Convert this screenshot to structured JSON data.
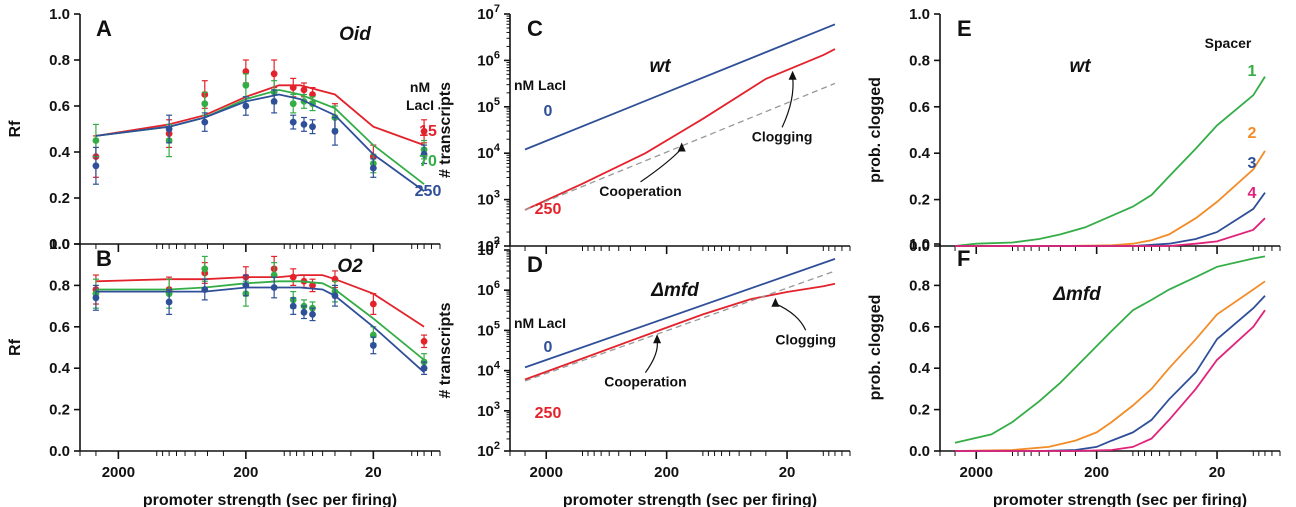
{
  "colors": {
    "red": "#e3222b",
    "green": "#34ad47",
    "blue": "#2f4f98",
    "orange": "#f28c28",
    "magenta": "#e0237a",
    "dashed": "#999999",
    "axis": "#111111"
  },
  "x_axis": {
    "label": "promoter strength (sec per firing)",
    "ticks": [
      2000,
      200,
      20
    ],
    "range": [
      4000,
      6
    ]
  },
  "chart_data": [
    {
      "id": "A",
      "panel_label": "A",
      "type": "line",
      "title": "Oid",
      "ylabel": "Rf",
      "ylim": [
        0,
        1
      ],
      "yticks": [
        "0.0",
        "0.2",
        "0.4",
        "0.6",
        "0.8",
        "1.0"
      ],
      "xscale": "log",
      "legend_title": [
        "nM",
        "LacI"
      ],
      "series": [
        {
          "name": "15",
          "color": "red",
          "x": [
            3000,
            800,
            420,
            200,
            110,
            75,
            40,
            20,
            8
          ],
          "y": [
            0.47,
            0.52,
            0.56,
            0.64,
            0.69,
            0.69,
            0.65,
            0.51,
            0.43
          ],
          "points": [
            [
              3000,
              0.38,
              0.09
            ],
            [
              800,
              0.48,
              0.06
            ],
            [
              420,
              0.65,
              0.06
            ],
            [
              200,
              0.75,
              0.05
            ],
            [
              120,
              0.74,
              0.06
            ],
            [
              85,
              0.68,
              0.04
            ],
            [
              70,
              0.67,
              0.03
            ],
            [
              60,
              0.65,
              0.03
            ],
            [
              40,
              0.55,
              0.06
            ],
            [
              20,
              0.38,
              0.05
            ],
            [
              8,
              0.49,
              0.05
            ]
          ]
        },
        {
          "name": "70",
          "color": "green",
          "x": [
            3000,
            800,
            420,
            200,
            110,
            75,
            40,
            20,
            8
          ],
          "y": [
            0.47,
            0.51,
            0.55,
            0.63,
            0.67,
            0.65,
            0.59,
            0.43,
            0.26
          ],
          "points": [
            [
              3000,
              0.45,
              0.07
            ],
            [
              800,
              0.45,
              0.07
            ],
            [
              420,
              0.61,
              0.05
            ],
            [
              200,
              0.69,
              0.05
            ],
            [
              120,
              0.66,
              0.05
            ],
            [
              85,
              0.61,
              0.04
            ],
            [
              70,
              0.62,
              0.03
            ],
            [
              60,
              0.61,
              0.03
            ],
            [
              40,
              0.55,
              0.05
            ],
            [
              20,
              0.35,
              0.04
            ],
            [
              8,
              0.41,
              0.04
            ]
          ]
        },
        {
          "name": "250",
          "color": "blue",
          "x": [
            3000,
            800,
            420,
            200,
            110,
            75,
            40,
            20,
            8
          ],
          "y": [
            0.47,
            0.51,
            0.55,
            0.62,
            0.65,
            0.63,
            0.56,
            0.39,
            0.23
          ],
          "points": [
            [
              3000,
              0.34,
              0.08
            ],
            [
              800,
              0.5,
              0.06
            ],
            [
              420,
              0.53,
              0.04
            ],
            [
              200,
              0.6,
              0.04
            ],
            [
              120,
              0.62,
              0.05
            ],
            [
              85,
              0.53,
              0.03
            ],
            [
              70,
              0.52,
              0.03
            ],
            [
              60,
              0.51,
              0.03
            ],
            [
              40,
              0.49,
              0.06
            ],
            [
              20,
              0.33,
              0.04
            ],
            [
              8,
              0.39,
              0.04
            ]
          ]
        }
      ]
    },
    {
      "id": "B",
      "panel_label": "B",
      "type": "line",
      "title": "O2",
      "ylabel": "Rf",
      "ylim": [
        0,
        1
      ],
      "yticks": [
        "0.0",
        "0.2",
        "0.4",
        "0.6",
        "0.8",
        "1.0"
      ],
      "xscale": "log",
      "series": [
        {
          "name": "15",
          "color": "red",
          "x": [
            3000,
            800,
            420,
            200,
            110,
            75,
            50,
            40,
            20,
            8
          ],
          "y": [
            0.82,
            0.83,
            0.83,
            0.84,
            0.84,
            0.85,
            0.85,
            0.83,
            0.76,
            0.6
          ],
          "points": [
            [
              3000,
              0.78,
              0.07
            ],
            [
              800,
              0.78,
              0.06
            ],
            [
              420,
              0.86,
              0.05
            ],
            [
              200,
              0.84,
              0.05
            ],
            [
              120,
              0.88,
              0.06
            ],
            [
              85,
              0.84,
              0.04
            ],
            [
              70,
              0.82,
              0.03
            ],
            [
              60,
              0.8,
              0.03
            ],
            [
              40,
              0.83,
              0.04
            ],
            [
              20,
              0.71,
              0.05
            ],
            [
              8,
              0.53,
              0.03
            ]
          ]
        },
        {
          "name": "70",
          "color": "green",
          "x": [
            3000,
            800,
            420,
            200,
            110,
            75,
            50,
            40,
            20,
            8
          ],
          "y": [
            0.78,
            0.78,
            0.79,
            0.81,
            0.82,
            0.82,
            0.81,
            0.78,
            0.64,
            0.44
          ],
          "points": [
            [
              3000,
              0.76,
              0.07
            ],
            [
              800,
              0.76,
              0.07
            ],
            [
              420,
              0.88,
              0.06
            ],
            [
              200,
              0.76,
              0.06
            ],
            [
              120,
              0.85,
              0.06
            ],
            [
              85,
              0.73,
              0.04
            ],
            [
              70,
              0.7,
              0.03
            ],
            [
              60,
              0.69,
              0.03
            ],
            [
              40,
              0.77,
              0.05
            ],
            [
              20,
              0.56,
              0.04
            ],
            [
              8,
              0.43,
              0.04
            ]
          ]
        },
        {
          "name": "250",
          "color": "blue",
          "x": [
            3000,
            800,
            420,
            200,
            110,
            75,
            50,
            40,
            20,
            8
          ],
          "y": [
            0.77,
            0.77,
            0.77,
            0.79,
            0.79,
            0.79,
            0.78,
            0.75,
            0.6,
            0.38
          ],
          "points": [
            [
              3000,
              0.74,
              0.06
            ],
            [
              800,
              0.72,
              0.06
            ],
            [
              420,
              0.78,
              0.05
            ],
            [
              200,
              0.8,
              0.05
            ],
            [
              120,
              0.79,
              0.05
            ],
            [
              85,
              0.7,
              0.04
            ],
            [
              70,
              0.67,
              0.03
            ],
            [
              60,
              0.66,
              0.03
            ],
            [
              40,
              0.75,
              0.05
            ],
            [
              20,
              0.51,
              0.04
            ],
            [
              8,
              0.4,
              0.03
            ]
          ]
        }
      ]
    },
    {
      "id": "C",
      "panel_label": "C",
      "type": "line",
      "title": "wt",
      "ylabel": "# transcripts",
      "yscale": "log",
      "ylim": [
        100,
        10000000
      ],
      "xscale": "log",
      "yticks": [
        {
          "b": "10",
          "e": "2"
        },
        {
          "b": "10",
          "e": "3"
        },
        {
          "b": "10",
          "e": "4"
        },
        {
          "b": "10",
          "e": "5"
        },
        {
          "b": "10",
          "e": "6"
        },
        {
          "b": "10",
          "e": "7"
        }
      ],
      "legend_title": "nM LacI",
      "series": [
        {
          "name": "0",
          "color": "blue",
          "x": [
            3000,
            8
          ],
          "y": [
            12000,
            6000000
          ]
        },
        {
          "name": "250",
          "color": "red",
          "x": [
            3000,
            1000,
            300,
            100,
            30,
            10,
            8
          ],
          "y": [
            600,
            2200,
            10000,
            55000,
            400000,
            1300000,
            1750000
          ]
        },
        {
          "name": "",
          "color": "dashed",
          "dashed": true,
          "x": [
            3000,
            8
          ],
          "y": [
            600,
            320000
          ]
        }
      ],
      "annotations": [
        {
          "text": "Cooperation",
          "x": 150,
          "y": 17000,
          "text_at": [
            330,
            1200
          ]
        },
        {
          "text": "Clogging",
          "x": 18,
          "y": 600000,
          "text_at": [
            22,
            18000
          ]
        }
      ]
    },
    {
      "id": "D",
      "panel_label": "D",
      "type": "line",
      "title": "Δmfd",
      "ylabel": "# transcripts",
      "yscale": "log",
      "ylim": [
        100,
        10000000
      ],
      "xscale": "log",
      "yticks": [
        {
          "b": "10",
          "e": "2"
        },
        {
          "b": "10",
          "e": "3"
        },
        {
          "b": "10",
          "e": "4"
        },
        {
          "b": "10",
          "e": "5"
        },
        {
          "b": "10",
          "e": "6"
        },
        {
          "b": "10",
          "e": "7"
        }
      ],
      "legend_title": "nM LacI",
      "series": [
        {
          "name": "0",
          "color": "blue",
          "x": [
            3000,
            8
          ],
          "y": [
            12000,
            6000000
          ]
        },
        {
          "name": "250",
          "color": "red",
          "x": [
            3000,
            1000,
            300,
            100,
            40,
            20,
            10,
            8
          ],
          "y": [
            6000,
            20000,
            75000,
            250000,
            600000,
            900000,
            1250000,
            1450000
          ]
        },
        {
          "name": "",
          "color": "dashed",
          "dashed": true,
          "x": [
            3000,
            8
          ],
          "y": [
            5500,
            3000000
          ]
        }
      ],
      "annotations": [
        {
          "text": "Cooperation",
          "x": 240,
          "y": 80000,
          "text_at": [
            300,
            4000
          ]
        },
        {
          "text": "Clogging",
          "x": 25,
          "y": 650000,
          "text_at": [
            14,
            45000
          ]
        }
      ]
    },
    {
      "id": "E",
      "panel_label": "E",
      "type": "line",
      "title": "wt",
      "ylabel": "prob. clogged",
      "ylim": [
        0,
        1
      ],
      "yticks": [
        "0.0",
        "0.2",
        "0.4",
        "0.6",
        "0.8",
        "1.0"
      ],
      "xscale": "log",
      "legend_title": "Spacer",
      "series": [
        {
          "name": "1",
          "color": "green",
          "x": [
            3000,
            2000,
            1000,
            600,
            400,
            250,
            150,
            100,
            70,
            50,
            30,
            20,
            10,
            8
          ],
          "y": [
            0.0,
            0.01,
            0.015,
            0.03,
            0.05,
            0.08,
            0.13,
            0.17,
            0.22,
            0.3,
            0.42,
            0.52,
            0.65,
            0.73
          ]
        },
        {
          "name": "2",
          "color": "orange",
          "x": [
            3000,
            400,
            150,
            100,
            70,
            50,
            30,
            20,
            10,
            8
          ],
          "y": [
            0.0,
            0.0,
            0.003,
            0.01,
            0.025,
            0.05,
            0.12,
            0.19,
            0.33,
            0.41
          ]
        },
        {
          "name": "3",
          "color": "blue",
          "x": [
            3000,
            150,
            100,
            70,
            50,
            30,
            20,
            10,
            8
          ],
          "y": [
            0.0,
            0.0,
            0.0,
            0.005,
            0.01,
            0.03,
            0.06,
            0.16,
            0.23
          ]
        },
        {
          "name": "4",
          "color": "magenta",
          "x": [
            3000,
            100,
            70,
            50,
            30,
            20,
            10,
            8
          ],
          "y": [
            0.0,
            0.0,
            0.0,
            0.0,
            0.01,
            0.02,
            0.07,
            0.12
          ]
        }
      ]
    },
    {
      "id": "F",
      "panel_label": "F",
      "type": "line",
      "title": "Δmfd",
      "ylabel": "prob. clogged",
      "ylim": [
        0,
        1
      ],
      "yticks": [
        "0.0",
        "0.2",
        "0.4",
        "0.6",
        "0.8",
        "1.0"
      ],
      "xscale": "log",
      "series": [
        {
          "name": "1",
          "color": "green",
          "x": [
            3000,
            1500,
            1000,
            600,
            400,
            250,
            150,
            100,
            70,
            50,
            30,
            20,
            10,
            8
          ],
          "y": [
            0.04,
            0.08,
            0.14,
            0.24,
            0.33,
            0.45,
            0.58,
            0.68,
            0.73,
            0.78,
            0.84,
            0.89,
            0.93,
            0.94
          ]
        },
        {
          "name": "2",
          "color": "orange",
          "x": [
            3000,
            1000,
            500,
            300,
            200,
            150,
            100,
            70,
            50,
            30,
            20,
            10,
            8
          ],
          "y": [
            0.0,
            0.005,
            0.02,
            0.05,
            0.09,
            0.14,
            0.22,
            0.3,
            0.4,
            0.54,
            0.66,
            0.78,
            0.82
          ]
        },
        {
          "name": "3",
          "color": "blue",
          "x": [
            3000,
            600,
            300,
            200,
            150,
            100,
            70,
            50,
            30,
            20,
            10,
            8
          ],
          "y": [
            0.0,
            0.0,
            0.005,
            0.02,
            0.05,
            0.09,
            0.15,
            0.25,
            0.38,
            0.54,
            0.69,
            0.75
          ]
        },
        {
          "name": "4",
          "color": "magenta",
          "x": [
            3000,
            300,
            150,
            100,
            70,
            50,
            30,
            20,
            10,
            8
          ],
          "y": [
            0.0,
            0.0,
            0.005,
            0.02,
            0.06,
            0.15,
            0.3,
            0.44,
            0.6,
            0.68
          ]
        }
      ]
    }
  ]
}
